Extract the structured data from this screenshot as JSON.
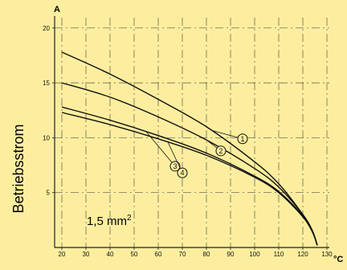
{
  "chart_data": {
    "type": "line",
    "y_unit": "A",
    "x_unit": "°C",
    "ylabel": "Betriebsstrom",
    "annotation_text": "1,5 mm",
    "annotation_sup": "2",
    "x_ticks": [
      20,
      30,
      40,
      50,
      60,
      70,
      80,
      90,
      100,
      110,
      120,
      130
    ],
    "y_ticks": [
      5,
      10,
      15,
      20
    ],
    "xlim": [
      17,
      131
    ],
    "ylim": [
      0,
      20.5
    ],
    "grid": true,
    "series": [
      {
        "name": "1",
        "x": [
          20,
          40,
          60,
          80,
          100,
          110,
          120,
          124,
          126
        ],
        "y": [
          17.8,
          15.8,
          13.5,
          11.0,
          7.8,
          5.8,
          3.0,
          1.5,
          0.2
        ]
      },
      {
        "name": "2",
        "x": [
          20,
          40,
          60,
          80,
          100,
          110,
          120,
          124,
          126
        ],
        "y": [
          15.0,
          13.7,
          11.9,
          9.8,
          7.2,
          5.5,
          3.0,
          1.5,
          0.2
        ]
      },
      {
        "name": "3",
        "x": [
          20,
          40,
          60,
          80,
          100,
          110,
          120,
          124,
          126
        ],
        "y": [
          12.8,
          11.6,
          10.2,
          8.6,
          6.5,
          5.1,
          2.9,
          1.5,
          0.2
        ]
      },
      {
        "name": "4",
        "x": [
          20,
          40,
          60,
          80,
          100,
          110,
          120,
          124,
          126
        ],
        "y": [
          12.3,
          11.2,
          9.9,
          8.4,
          6.4,
          5.0,
          2.8,
          1.4,
          0.2
        ]
      }
    ],
    "callouts": [
      {
        "label": "1",
        "x": 95,
        "y": 9.9
      },
      {
        "label": "2",
        "x": 86,
        "y": 8.8
      },
      {
        "label": "3",
        "x": 67,
        "y": 7.4
      },
      {
        "label": "4",
        "x": 70,
        "y": 6.8
      }
    ]
  }
}
